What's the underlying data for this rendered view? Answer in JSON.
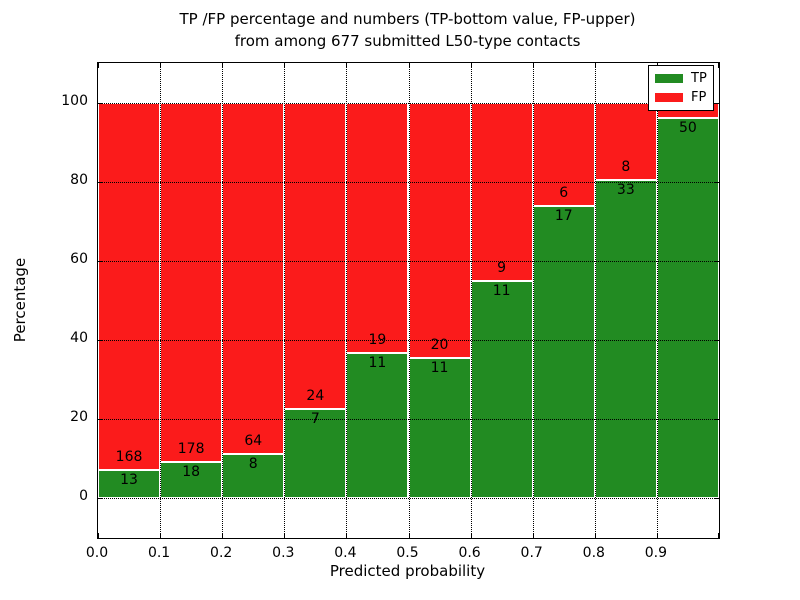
{
  "figure": {
    "title_line1": "TP /FP percentage and numbers (TP-bottom value, FP-upper)",
    "title_line2": "from among 677 submitted L50-type contacts"
  },
  "axes": {
    "xlabel": "Predicted probability",
    "ylabel": "Percentage",
    "x_tick_labels": [
      "0.0",
      "0.1",
      "0.2",
      "0.3",
      "0.4",
      "0.5",
      "0.6",
      "0.7",
      "0.8",
      "0.9"
    ],
    "y_tick_labels": [
      "0",
      "20",
      "40",
      "60",
      "80",
      "100"
    ],
    "y_tick_values": [
      0,
      20,
      40,
      60,
      80,
      100
    ],
    "xlim": [
      0.0,
      1.0
    ],
    "ylim": [
      -10,
      110
    ],
    "grid": true,
    "gridline_style": "dotted"
  },
  "legend": {
    "position": "upper right",
    "items": [
      {
        "label": "TP",
        "color": "#228b22"
      },
      {
        "label": "FP",
        "color": "#fb1b1b"
      }
    ]
  },
  "chart_data": {
    "type": "bar",
    "stacked": true,
    "normalized_to_percent": true,
    "title": "TP /FP percentage and numbers (TP-bottom value, FP-upper) from among 677 submitted L50-type contacts",
    "xlabel": "Predicted probability",
    "ylabel": "Percentage",
    "total_contacts": 677,
    "bin_edges": [
      0.0,
      0.1,
      0.2,
      0.3,
      0.4,
      0.5,
      0.6,
      0.7,
      0.8,
      0.9,
      1.0
    ],
    "categories": [
      "0.0-0.1",
      "0.1-0.2",
      "0.2-0.3",
      "0.3-0.4",
      "0.4-0.5",
      "0.5-0.6",
      "0.6-0.7",
      "0.7-0.8",
      "0.8-0.9",
      "0.9-1.0"
    ],
    "series": [
      {
        "name": "TP",
        "color": "#228b22",
        "counts": [
          13,
          18,
          8,
          7,
          11,
          11,
          11,
          17,
          33,
          50
        ],
        "labels_visible": [
          true,
          true,
          true,
          true,
          true,
          true,
          true,
          true,
          true,
          true
        ]
      },
      {
        "name": "FP",
        "color": "#fb1b1b",
        "counts": [
          168,
          178,
          64,
          24,
          19,
          20,
          9,
          6,
          8,
          2
        ],
        "labels_visible": [
          true,
          true,
          true,
          true,
          true,
          true,
          true,
          true,
          true,
          false
        ],
        "last_count_estimated_from_total": true
      }
    ],
    "tp_percent": [
      7.18,
      9.18,
      11.11,
      22.58,
      36.67,
      35.48,
      55.0,
      73.91,
      80.49,
      96.15
    ],
    "ylim": [
      -10,
      110
    ],
    "xlim": [
      0.0,
      1.0
    ],
    "grid": true,
    "legend_position": "upper right"
  }
}
